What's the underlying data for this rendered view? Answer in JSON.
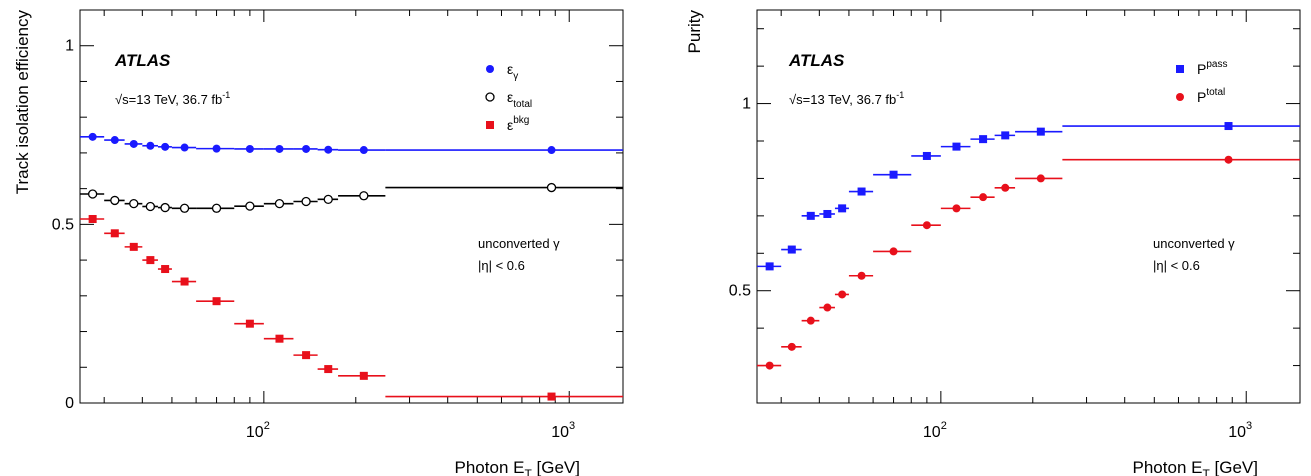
{
  "chart_data": [
    {
      "type": "scatter",
      "xlabel": "Photon E_T [GeV]",
      "ylabel": "Track isolation efficiency",
      "xscale": "log",
      "xlim": [
        25,
        1500
      ],
      "ylim": [
        0,
        1.1
      ],
      "y_ticks": [
        0,
        0.5,
        1
      ],
      "y_tick_labels": [
        "0",
        "0.5",
        "1"
      ],
      "x_tick_labels": [
        {
          "base": "10",
          "exp": "2",
          "value": 100
        },
        {
          "base": "10",
          "exp": "3",
          "value": 1000
        }
      ],
      "experiment_label": "ATLAS",
      "energy_label": {
        "root": "√s",
        "rest": "=13 TeV, 36.7 fb",
        "sup": "-1"
      },
      "annotations": [
        "unconverted γ",
        "|η| < 0.6"
      ],
      "legend_position": "top-right",
      "bins": [
        [
          25,
          30
        ],
        [
          30,
          35
        ],
        [
          35,
          40
        ],
        [
          40,
          45
        ],
        [
          45,
          50
        ],
        [
          50,
          60
        ],
        [
          60,
          80
        ],
        [
          80,
          100
        ],
        [
          100,
          125
        ],
        [
          125,
          150
        ],
        [
          150,
          175
        ],
        [
          175,
          250
        ],
        [
          250,
          1500
        ]
      ],
      "series": [
        {
          "legend_main": "ε",
          "legend_sub": "γ",
          "legend_sup": "",
          "marker": "circle",
          "filled": true,
          "color": "#1a1aff",
          "x": [
            27.5,
            32.5,
            37.5,
            42.5,
            47.5,
            55,
            70,
            90,
            112.5,
            137.5,
            162.5,
            212.5,
            875
          ],
          "y": [
            0.745,
            0.736,
            0.725,
            0.72,
            0.717,
            0.715,
            0.712,
            0.711,
            0.711,
            0.711,
            0.709,
            0.708,
            0.708
          ]
        },
        {
          "legend_main": "ε",
          "legend_sub": "total",
          "legend_sup": "",
          "marker": "circle",
          "filled": false,
          "color": "#000000",
          "x": [
            27.5,
            32.5,
            37.5,
            42.5,
            47.5,
            55,
            70,
            90,
            112.5,
            137.5,
            162.5,
            212.5,
            875
          ],
          "y": [
            0.585,
            0.567,
            0.558,
            0.55,
            0.547,
            0.545,
            0.545,
            0.551,
            0.558,
            0.564,
            0.57,
            0.58,
            0.603
          ]
        },
        {
          "legend_main": "ε",
          "legend_sub": "",
          "legend_sup": "bkg",
          "marker": "square",
          "filled": true,
          "color": "#e8101b",
          "x": [
            27.5,
            32.5,
            37.5,
            42.5,
            47.5,
            55,
            70,
            90,
            112.5,
            137.5,
            162.5,
            212.5,
            875
          ],
          "y": [
            0.515,
            0.475,
            0.437,
            0.4,
            0.375,
            0.34,
            0.285,
            0.222,
            0.18,
            0.134,
            0.095,
            0.076,
            0.018
          ]
        }
      ]
    },
    {
      "type": "scatter",
      "xlabel": "Photon E_T [GeV]",
      "ylabel": "Purity",
      "xscale": "log",
      "xlim": [
        25,
        1500
      ],
      "ylim": [
        0.2,
        1.25
      ],
      "y_ticks": [
        0.5,
        1
      ],
      "y_tick_labels": [
        "0.5",
        "1"
      ],
      "x_tick_labels": [
        {
          "base": "10",
          "exp": "2",
          "value": 100
        },
        {
          "base": "10",
          "exp": "3",
          "value": 1000
        }
      ],
      "experiment_label": "ATLAS",
      "energy_label": {
        "root": "√s",
        "rest": "=13 TeV, 36.7 fb",
        "sup": "-1"
      },
      "annotations": [
        "unconverted γ",
        "|η| < 0.6"
      ],
      "legend_position": "top-right",
      "bins": [
        [
          25,
          30
        ],
        [
          30,
          35
        ],
        [
          35,
          40
        ],
        [
          40,
          45
        ],
        [
          45,
          50
        ],
        [
          50,
          60
        ],
        [
          60,
          80
        ],
        [
          80,
          100
        ],
        [
          100,
          125
        ],
        [
          125,
          150
        ],
        [
          150,
          175
        ],
        [
          175,
          250
        ],
        [
          250,
          1500
        ]
      ],
      "series": [
        {
          "legend_main": "P",
          "legend_sub": "",
          "legend_sup": "pass",
          "marker": "square",
          "filled": true,
          "color": "#1a1aff",
          "x": [
            27.5,
            32.5,
            37.5,
            42.5,
            47.5,
            55,
            70,
            90,
            112.5,
            137.5,
            162.5,
            212.5,
            875
          ],
          "y": [
            0.565,
            0.61,
            0.7,
            0.705,
            0.72,
            0.765,
            0.81,
            0.86,
            0.885,
            0.905,
            0.915,
            0.925,
            0.94
          ]
        },
        {
          "legend_main": "P",
          "legend_sub": "",
          "legend_sup": "total",
          "marker": "circle",
          "filled": true,
          "color": "#e8101b",
          "x": [
            27.5,
            32.5,
            37.5,
            42.5,
            47.5,
            55,
            70,
            90,
            112.5,
            137.5,
            162.5,
            212.5,
            875
          ],
          "y": [
            0.3,
            0.35,
            0.42,
            0.455,
            0.49,
            0.54,
            0.605,
            0.675,
            0.72,
            0.75,
            0.775,
            0.8,
            0.85
          ]
        }
      ]
    }
  ]
}
